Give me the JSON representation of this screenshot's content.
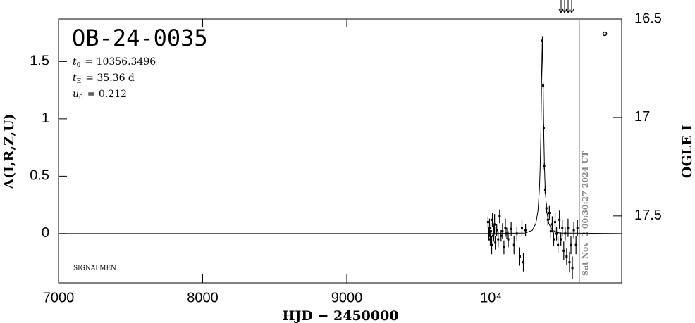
{
  "chart_data": {
    "type": "scatter",
    "title": "OB-24-0035",
    "params": [
      {
        "symbol": "t",
        "sub": "0",
        "text": "= 10356.3496"
      },
      {
        "symbol": "t",
        "sub": "E",
        "text": "= 35.36 d"
      },
      {
        "symbol": "u",
        "sub": "0",
        "text": "= 0.212"
      }
    ],
    "note": "SIGNALMEN",
    "xlabel": "HJD − 2450000",
    "ylabel": "Δ(I,R,Z,U)",
    "y2label": "OGLE I",
    "xlim": [
      7000,
      10907
    ],
    "ylim": [
      -0.43,
      1.87
    ],
    "y2lim": [
      17.84,
      16.5
    ],
    "xticks": [
      7000,
      8000,
      9000,
      {
        "value": 10000,
        "label": "10⁴"
      }
    ],
    "yticks": [
      0,
      0.5,
      1,
      1.5
    ],
    "y2ticks": [
      16.5,
      17,
      17.5
    ],
    "annotation": {
      "text": "Sat Nov  2 00:30:27 2024 UT",
      "x": 10614
    },
    "series": [
      {
        "type": "errorbar",
        "color": "#000000",
        "x": [
          9980,
          9985,
          9990,
          9995,
          10000,
          10005,
          10010,
          10015,
          10020,
          10025,
          10030,
          10040,
          10050,
          10060,
          10070,
          10080,
          10090,
          10100,
          10110,
          10120,
          10140,
          10160,
          10180,
          10200,
          10215,
          10225,
          10240,
          10357,
          10362,
          10366,
          10370,
          10376,
          10385,
          10395,
          10405,
          10415,
          10425,
          10435,
          10445,
          10455,
          10465,
          10475,
          10485,
          10495,
          10505,
          10515,
          10525,
          10535,
          10545,
          10555,
          10565,
          10575,
          10590,
          10600
        ],
        "values": [
          0.1,
          0.0,
          0.05,
          -0.05,
          0.02,
          -0.1,
          0.12,
          -0.02,
          0.0,
          0.08,
          -0.08,
          0.03,
          -0.05,
          0.15,
          -0.02,
          0.02,
          -0.12,
          0.05,
          0.0,
          -0.05,
          0.04,
          -0.1,
          0.0,
          -0.2,
          0.05,
          -0.25,
          0.03,
          1.68,
          1.29,
          0.92,
          0.59,
          0.38,
          0.22,
          0.12,
          0.18,
          0.02,
          0.08,
          -0.05,
          0.1,
          0.0,
          -0.1,
          0.12,
          -0.05,
          0.05,
          -0.15,
          0.0,
          -0.2,
          0.05,
          -0.25,
          -0.1,
          -0.3,
          0.03,
          -0.1,
          0.05
        ],
        "errors": [
          0.05,
          0.06,
          0.08,
          0.06,
          0.07,
          0.08,
          0.06,
          0.05,
          0.07,
          0.09,
          0.06,
          0.05,
          0.07,
          0.06,
          0.05,
          0.07,
          0.06,
          0.08,
          0.05,
          0.07,
          0.06,
          0.08,
          0.06,
          0.08,
          0.07,
          0.08,
          0.05,
          0.04,
          0.03,
          0.03,
          0.03,
          0.03,
          0.04,
          0.05,
          0.06,
          0.06,
          0.07,
          0.06,
          0.08,
          0.06,
          0.07,
          0.08,
          0.06,
          0.07,
          0.08,
          0.06,
          0.07,
          0.08,
          0.09,
          0.08,
          0.1,
          0.07,
          0.08,
          0.07
        ]
      },
      {
        "type": "line",
        "color": "#000000",
        "x": [
          7000,
          10000,
          10236.35,
          10286.35,
          10311.35,
          10326.35,
          10336.35,
          10341.35,
          10346.35,
          10351.35,
          10356.35,
          10361.35,
          10366.35,
          10371.35,
          10376.35,
          10386.35,
          10401.35,
          10426.35,
          10476.35,
          10907
        ],
        "values": [
          0,
          0,
          0.005,
          0.028,
          0.087,
          0.2,
          0.391,
          0.573,
          0.877,
          1.35,
          1.7,
          1.35,
          0.877,
          0.573,
          0.391,
          0.2,
          0.087,
          0.028,
          0.005,
          0
        ]
      },
      {
        "type": "circle",
        "axis": "y2",
        "color": "#000000",
        "x": [
          10790
        ],
        "values": [
          16.575
        ]
      }
    ]
  }
}
